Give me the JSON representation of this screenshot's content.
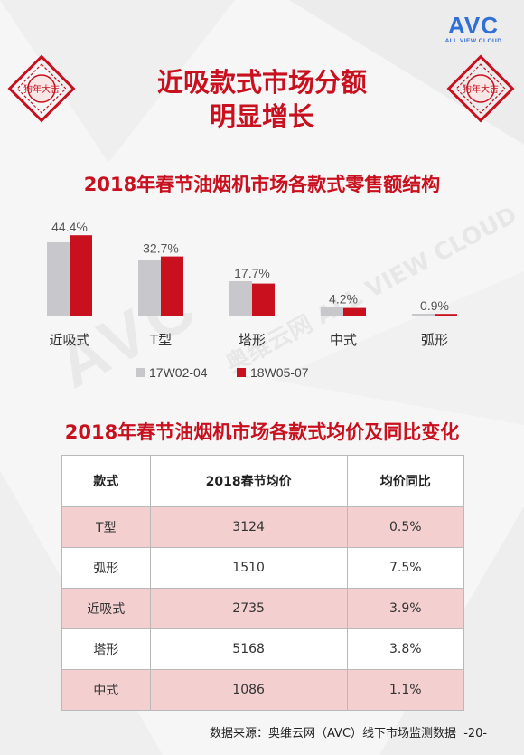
{
  "brand": {
    "name": "AVC",
    "tagline": "ALL VIEW CLOUD"
  },
  "papercut": {
    "text": "狗年大吉"
  },
  "headline": {
    "line1": "近吸款式市场分额",
    "line2": "明显增长"
  },
  "watermark": {
    "main": "AVC",
    "sub": "奥维云网 ALL VIEW CLOUD"
  },
  "chart_title": "2018年春节油烟机市场各款式零售额结构",
  "chart_data": {
    "type": "bar",
    "categories": [
      "近吸式",
      "T型",
      "塔形",
      "中式",
      "弧形"
    ],
    "series": [
      {
        "name": "17W02-04",
        "values": [
          40.5,
          31.0,
          19.0,
          4.8,
          1.0
        ]
      },
      {
        "name": "18W05-07",
        "values": [
          44.4,
          32.7,
          17.7,
          4.2,
          0.9
        ]
      }
    ],
    "data_labels": [
      "44.4%",
      "32.7%",
      "17.7%",
      "4.2%",
      "0.9%"
    ],
    "ylim": [
      0,
      50
    ],
    "grid": false,
    "legend": "bottom",
    "colors": [
      "#c8c8cc",
      "#c8101e"
    ]
  },
  "table_title": "2018年春节油烟机市场各款式均价及同比变化",
  "table": {
    "headers": [
      "款式",
      "2018春节均价",
      "均价同比"
    ],
    "rows": [
      [
        "T型",
        "3124",
        "0.5%"
      ],
      [
        "弧形",
        "1510",
        "7.5%"
      ],
      [
        "近吸式",
        "2735",
        "3.9%"
      ],
      [
        "塔形",
        "5168",
        "3.8%"
      ],
      [
        "中式",
        "1086",
        "1.1%"
      ]
    ]
  },
  "footer": {
    "source": "数据来源：奥维云网（AVC）线下市场监测数据",
    "page": "-20-"
  },
  "colors": {
    "accent": "#c8101e",
    "brand_blue": "#2f6fd6",
    "row_shade": "#f3cfcf"
  }
}
